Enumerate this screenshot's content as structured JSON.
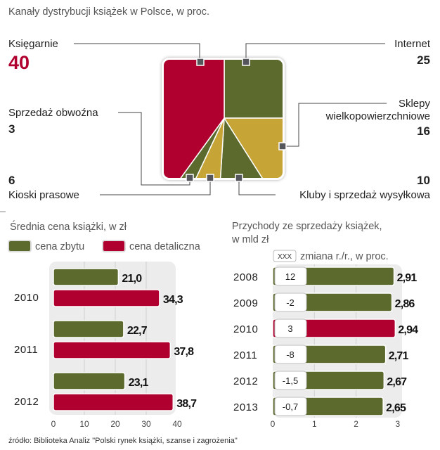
{
  "chart_data": [
    {
      "type": "pie",
      "title": "Kanały dystrybucji książek w Polsce, w proc.",
      "segments": [
        {
          "label": "Internet",
          "value": 25,
          "color": "#5c6a2e"
        },
        {
          "label": "Sklepy",
          "label2": "wielkopowierzchniowe",
          "value": 16,
          "color": "#c6a536"
        },
        {
          "label": "Kluby i sprzedaż wysyłkowa",
          "value": 10,
          "color": "#5c6a2e"
        },
        {
          "label": "Kioski prasowe",
          "value": 6,
          "color": "#c6a536"
        },
        {
          "label": "Sprzedaż obwoźna",
          "value": 3,
          "color": "#5c6a2e"
        },
        {
          "label": "Księgarnie",
          "value": 40,
          "color": "#b0002f"
        }
      ]
    },
    {
      "type": "bar",
      "orientation": "horizontal",
      "title": "Średnia cena książki, w zł",
      "categories": [
        "2010",
        "2011",
        "2012"
      ],
      "series": [
        {
          "name": "cena zbytu",
          "color": "#5c6a2e",
          "values": [
            21.0,
            22.7,
            23.1
          ],
          "labels": [
            "21,0",
            "22,7",
            "23,1"
          ]
        },
        {
          "name": "cena detaliczna",
          "color": "#b0002f",
          "values": [
            34.3,
            37.8,
            38.7
          ],
          "labels": [
            "34,3",
            "37,8",
            "38,7"
          ]
        }
      ],
      "xlim": [
        0,
        40
      ],
      "xticks": [
        "0",
        "10",
        "20",
        "30",
        "40"
      ],
      "legend": "top-left"
    },
    {
      "type": "bar",
      "orientation": "horizontal",
      "title": "Przychody ze sprzedaży książek,",
      "title2": "w mld zł",
      "legend_box": "XXX",
      "legend_text": "zmiana r./r., w proc.",
      "categories": [
        "2008",
        "2009",
        "2010",
        "2011",
        "2012",
        "2013"
      ],
      "values": [
        2.91,
        2.86,
        2.94,
        2.71,
        2.67,
        2.65
      ],
      "labels": [
        "2,91",
        "2,86",
        "2,94",
        "2,71",
        "2,67",
        "2,65"
      ],
      "changes": [
        "12",
        "-2",
        "3",
        "-8",
        "-1,5",
        "-0,7"
      ],
      "colors": [
        "#5c6a2e",
        "#5c6a2e",
        "#b0002f",
        "#5c6a2e",
        "#5c6a2e",
        "#5c6a2e"
      ],
      "xlim": [
        0,
        3
      ],
      "xticks": [
        "0",
        "1",
        "2",
        "3"
      ]
    }
  ],
  "source": "źródło: Biblioteka Analiz \"Polski rynek książki, szanse i zagrożenia\""
}
